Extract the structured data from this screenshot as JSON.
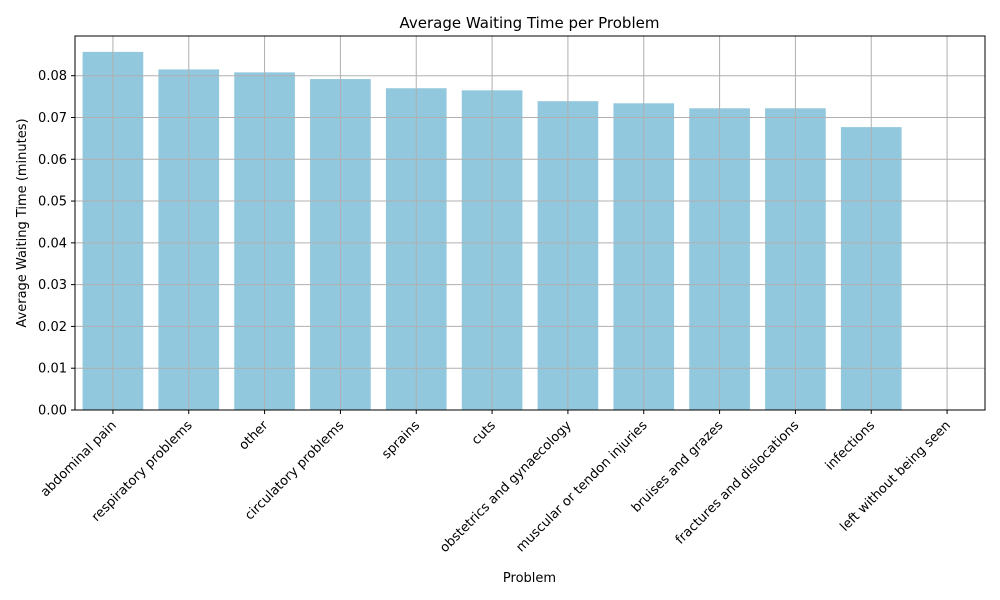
{
  "chart_data": {
    "type": "bar",
    "title": "Average Waiting Time per Problem",
    "xlabel": "Problem",
    "ylabel": "Average Waiting Time (minutes)",
    "categories": [
      "abdominal pain",
      "respiratory problems",
      "other",
      "circulatory problems",
      "sprains",
      "cuts",
      "obstetrics and gynaecology",
      "muscular or tendon injuries",
      "bruises and grazes",
      "fractures and dislocations",
      "infections",
      "left without being seen"
    ],
    "values": [
      0.0857,
      0.0815,
      0.0808,
      0.0792,
      0.077,
      0.0765,
      0.0739,
      0.0734,
      0.0722,
      0.0722,
      0.0677,
      0.0
    ],
    "ylim": [
      0,
      0.0895
    ],
    "yticks": [
      "0.00",
      "0.01",
      "0.02",
      "0.03",
      "0.04",
      "0.05",
      "0.06",
      "0.07",
      "0.08"
    ],
    "grid": true,
    "legend": "none",
    "colors": {
      "bar": "#92c8dd",
      "grid": "#b0b0b0",
      "axis": "#000000"
    }
  }
}
